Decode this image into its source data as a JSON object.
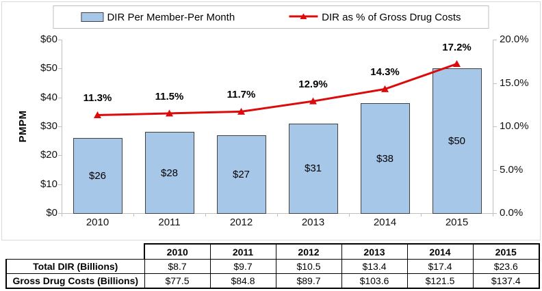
{
  "legend": {
    "bar_label": "DIR Per Member-Per Month",
    "line_label": "DIR as % of Gross Drug Costs"
  },
  "chart_data": {
    "type": "combo-bar-line",
    "categories": [
      "2010",
      "2011",
      "2012",
      "2013",
      "2014",
      "2015"
    ],
    "series": [
      {
        "name": "DIR Per Member-Per Month",
        "type": "bar",
        "axis": "left",
        "values": [
          26,
          28,
          27,
          31,
          38,
          50
        ],
        "labels": [
          "$26",
          "$28",
          "$27",
          "$31",
          "$38",
          "$50"
        ]
      },
      {
        "name": "DIR as % of Gross Drug Costs",
        "type": "line",
        "axis": "right",
        "values": [
          11.3,
          11.5,
          11.7,
          12.9,
          14.3,
          17.2
        ],
        "labels": [
          "11.3%",
          "11.5%",
          "11.7%",
          "12.9%",
          "14.3%",
          "17.2%"
        ]
      }
    ],
    "ylabel_left": "PMPM",
    "left_axis": {
      "min": 0,
      "max": 60,
      "ticks": [
        "$0",
        "$10",
        "$20",
        "$30",
        "$40",
        "$50",
        "$60"
      ]
    },
    "right_axis": {
      "min": 0,
      "max": 20,
      "ticks": [
        "0.0%",
        "5.0%",
        "10.0%",
        "15.0%",
        "20.0%"
      ]
    },
    "grid": false,
    "legend_position": "top-center"
  },
  "table": {
    "years": [
      "2010",
      "2011",
      "2012",
      "2013",
      "2014",
      "2015"
    ],
    "rows": [
      {
        "label": "Total DIR (Billions)",
        "values": [
          "$8.7",
          "$9.7",
          "$10.5",
          "$13.4",
          "$17.4",
          "$23.6"
        ]
      },
      {
        "label": "Gross Drug Costs (Billions)",
        "values": [
          "$77.5",
          "$84.8",
          "$89.7",
          "$103.6",
          "$121.5",
          "$137.4"
        ]
      }
    ]
  },
  "colors": {
    "bar_fill": "#A7C7E8",
    "bar_border": "#404040",
    "line": "#DC0A0A",
    "axis_line": "#BFBFBF"
  }
}
